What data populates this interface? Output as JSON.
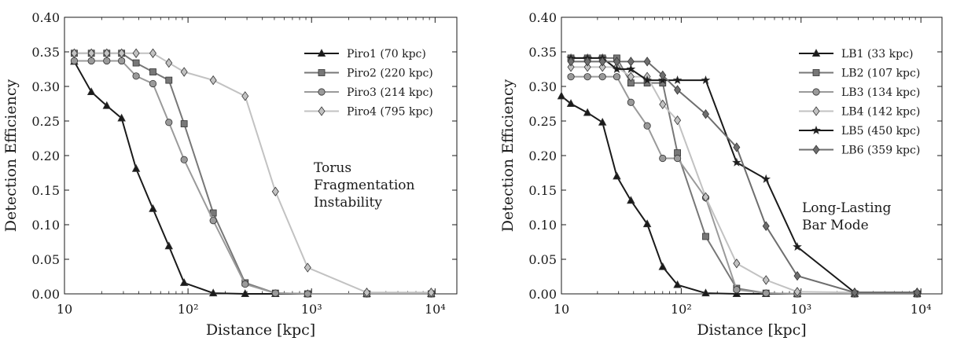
{
  "chart_data": [
    {
      "type": "line",
      "xscale": "log",
      "xlim": [
        10,
        15000
      ],
      "ylim": [
        0,
        0.4
      ],
      "xlabel": "Distance [kpc]",
      "ylabel": "Detection Efficiency",
      "xticks": [
        10,
        100,
        1000,
        10000
      ],
      "xtick_labels": [
        "10",
        "10²",
        "10³",
        "10⁴"
      ],
      "yticks": [
        0,
        0.05,
        0.1,
        0.15,
        0.2,
        0.25,
        0.3,
        0.35,
        0.4
      ],
      "ytick_labels": [
        "0.00",
        "0.05",
        "0.10",
        "0.15",
        "0.20",
        "0.25",
        "0.30",
        "0.35",
        "0.40"
      ],
      "annotation": [
        "Torus",
        "Fragmentation",
        "Instability"
      ],
      "legend_position": "top-right",
      "grid": false,
      "series": [
        {
          "name": "Piro1 (70 kpc)",
          "color": "#1a1a1a",
          "marker": "triangle",
          "x": [
            12,
            16.5,
            22,
            29,
            38,
            52,
            70,
            93,
            160,
            290,
            510,
            930,
            2800,
            9300
          ],
          "y": [
            0.336,
            0.292,
            0.272,
            0.254,
            0.181,
            0.123,
            0.069,
            0.016,
            0.001,
            0,
            0,
            0,
            0,
            0
          ]
        },
        {
          "name": "Piro2 (220 kpc)",
          "color": "#777777",
          "marker": "square",
          "x": [
            12,
            16.5,
            22,
            29,
            38,
            52,
            70,
            93,
            160,
            290,
            510,
            930,
            2800,
            9300
          ],
          "y": [
            0.348,
            0.348,
            0.348,
            0.348,
            0.334,
            0.321,
            0.309,
            0.246,
            0.117,
            0.016,
            0.001,
            0,
            0,
            0
          ]
        },
        {
          "name": "Piro3 (214 kpc)",
          "color": "#9a9a9a",
          "marker": "circle",
          "x": [
            12,
            16.5,
            22,
            29,
            38,
            52,
            70,
            93,
            160,
            290,
            510,
            930,
            2800,
            9300
          ],
          "y": [
            0.337,
            0.337,
            0.337,
            0.337,
            0.315,
            0.304,
            0.248,
            0.194,
            0.106,
            0.014,
            0.001,
            0,
            0,
            0
          ]
        },
        {
          "name": "Piro4 (795 kpc)",
          "color": "#c2c2c2",
          "marker": "diamond",
          "x": [
            12,
            16.5,
            22,
            29,
            38,
            52,
            70,
            93,
            160,
            290,
            510,
            930,
            2800,
            9300
          ],
          "y": [
            0.348,
            0.348,
            0.348,
            0.348,
            0.348,
            0.348,
            0.334,
            0.321,
            0.309,
            0.286,
            0.148,
            0.038,
            0.002,
            0.002
          ]
        }
      ]
    },
    {
      "type": "line",
      "xscale": "log",
      "xlim": [
        10,
        15000
      ],
      "ylim": [
        0,
        0.4
      ],
      "xlabel": "Distance [kpc]",
      "ylabel": "Detection Efficiency",
      "xticks": [
        10,
        100,
        1000,
        10000
      ],
      "xtick_labels": [
        "10",
        "10²",
        "10³",
        "10⁴"
      ],
      "yticks": [
        0,
        0.05,
        0.1,
        0.15,
        0.2,
        0.25,
        0.3,
        0.35,
        0.4
      ],
      "ytick_labels": [
        "0.00",
        "0.05",
        "0.10",
        "0.15",
        "0.20",
        "0.25",
        "0.30",
        "0.35",
        "0.40"
      ],
      "annotation": [
        "Long-Lasting",
        "Bar Mode"
      ],
      "legend_position": "top-right",
      "grid": false,
      "series": [
        {
          "name": "LB1 (33 kpc)",
          "color": "#1a1a1a",
          "marker": "triangle",
          "x": [
            10,
            12,
            16.5,
            22,
            29,
            38,
            52,
            70,
            93,
            160,
            290,
            510,
            930,
            2800,
            9300
          ],
          "y": [
            0.286,
            0.275,
            0.262,
            0.248,
            0.17,
            0.135,
            0.101,
            0.039,
            0.013,
            0.001,
            0,
            0,
            0,
            0,
            0
          ]
        },
        {
          "name": "LB2 (107 kpc)",
          "color": "#777777",
          "marker": "square",
          "x": [
            12,
            16.5,
            22,
            29,
            38,
            52,
            70,
            93,
            160,
            290,
            510,
            930,
            2800,
            9300
          ],
          "y": [
            0.341,
            0.341,
            0.341,
            0.341,
            0.305,
            0.305,
            0.305,
            0.204,
            0.083,
            0.008,
            0.001,
            0,
            0,
            0
          ]
        },
        {
          "name": "LB3 (134 kpc)",
          "color": "#9a9a9a",
          "marker": "circle",
          "x": [
            12,
            16.5,
            22,
            29,
            38,
            52,
            70,
            93,
            160,
            290,
            510,
            930,
            2800,
            9300
          ],
          "y": [
            0.314,
            0.314,
            0.314,
            0.314,
            0.277,
            0.243,
            0.196,
            0.196,
            0.139,
            0.006,
            0.001,
            0,
            0,
            0
          ]
        },
        {
          "name": "LB4 (142 kpc)",
          "color": "#c2c2c2",
          "marker": "diamond",
          "x": [
            12,
            16.5,
            22,
            29,
            38,
            52,
            70,
            93,
            160,
            290,
            510,
            930,
            2800,
            9300
          ],
          "y": [
            0.328,
            0.328,
            0.328,
            0.328,
            0.314,
            0.314,
            0.274,
            0.251,
            0.14,
            0.044,
            0.02,
            0.003,
            0.002,
            0.002
          ]
        },
        {
          "name": "LB5 (450 kpc)",
          "color": "#1a1a1a",
          "marker": "star",
          "x": [
            12,
            16.5,
            22,
            29,
            38,
            52,
            70,
            93,
            160,
            290,
            510,
            930,
            2800,
            9300
          ],
          "y": [
            0.341,
            0.341,
            0.341,
            0.325,
            0.325,
            0.309,
            0.309,
            0.309,
            0.309,
            0.19,
            0.166,
            0.068,
            0.002,
            0.002
          ]
        },
        {
          "name": "LB6 (359 kpc)",
          "color": "#6e6e6e",
          "marker": "diamond",
          "x": [
            12,
            16.5,
            22,
            29,
            38,
            52,
            70,
            93,
            160,
            290,
            510,
            930,
            2800,
            9300
          ],
          "y": [
            0.336,
            0.336,
            0.336,
            0.336,
            0.336,
            0.336,
            0.316,
            0.295,
            0.26,
            0.212,
            0.098,
            0.026,
            0.002,
            0.002
          ]
        }
      ]
    }
  ]
}
